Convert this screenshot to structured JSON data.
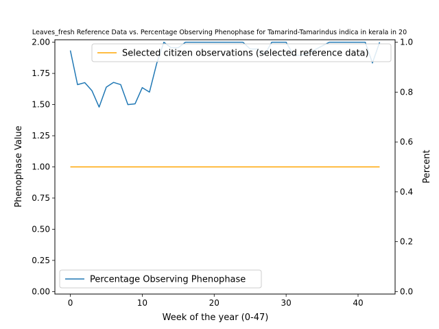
{
  "chart_data": {
    "type": "line",
    "title": "Leaves_fresh Reference Data vs. Percentage Observing Phenophase for Tamarind-Tamarindus indica in kerala in 20",
    "xlabel": "Week of the year (0-47)",
    "ylabel_left": "Phenophase Value",
    "ylabel_right": "Percent",
    "xlim": [
      -2.15,
      45.15
    ],
    "ylim_left": [
      -0.02,
      2.02
    ],
    "ylim_right": [
      -0.01,
      1.01
    ],
    "x_ticks": [
      0,
      10,
      20,
      30,
      40
    ],
    "x_tick_labels": [
      "0",
      "10",
      "20",
      "30",
      "40"
    ],
    "y_left_ticks": [
      0,
      0.25,
      0.5,
      0.75,
      1.0,
      1.25,
      1.5,
      1.75,
      2.0
    ],
    "y_left_tick_labels": [
      "0.00",
      "0.25",
      "0.50",
      "0.75",
      "1.00",
      "1.25",
      "1.50",
      "1.75",
      "2.00"
    ],
    "y_right_ticks": [
      0,
      0.2,
      0.4,
      0.6,
      0.8,
      1.0
    ],
    "y_right_tick_labels": [
      "0.0",
      "0.2",
      "0.4",
      "0.6",
      "0.8",
      "1.0"
    ],
    "grid": false,
    "series": [
      {
        "name": "Selected citizen observations (selected reference data)",
        "axis": "left",
        "color": "#ffa500",
        "x": [
          0,
          43
        ],
        "y": [
          1.0,
          1.0
        ]
      },
      {
        "name": "Percentage Observing Phenophase",
        "axis": "right",
        "color": "#1f77b4",
        "x": [
          0,
          1,
          2,
          3,
          4,
          5,
          6,
          7,
          8,
          9,
          10,
          11,
          12,
          13,
          14,
          15,
          16,
          17,
          18,
          19,
          20,
          21,
          22,
          23,
          24,
          25,
          26,
          27,
          28,
          29,
          30,
          31,
          32,
          33,
          34,
          35,
          36,
          37,
          38,
          39,
          40,
          41,
          42,
          43
        ],
        "y": [
          0.967,
          0.83,
          0.838,
          0.806,
          0.74,
          0.82,
          0.839,
          0.83,
          0.75,
          0.753,
          0.818,
          0.8,
          0.914,
          1.0,
          0.978,
          0.978,
          1.0,
          1.0,
          1.0,
          1.0,
          1.0,
          1.0,
          1.0,
          1.0,
          1.0,
          0.973,
          0.973,
          0.95,
          1.0,
          1.0,
          1.0,
          0.95,
          0.947,
          0.955,
          0.97,
          0.985,
          1.0,
          1.0,
          1.0,
          1.0,
          1.0,
          1.0,
          0.917,
          1.0
        ]
      }
    ],
    "legends": [
      {
        "placement": "upper-right",
        "entries": [
          "Selected citizen observations (selected reference data)"
        ]
      },
      {
        "placement": "lower-left",
        "entries": [
          "Percentage Observing Phenophase"
        ]
      }
    ]
  }
}
